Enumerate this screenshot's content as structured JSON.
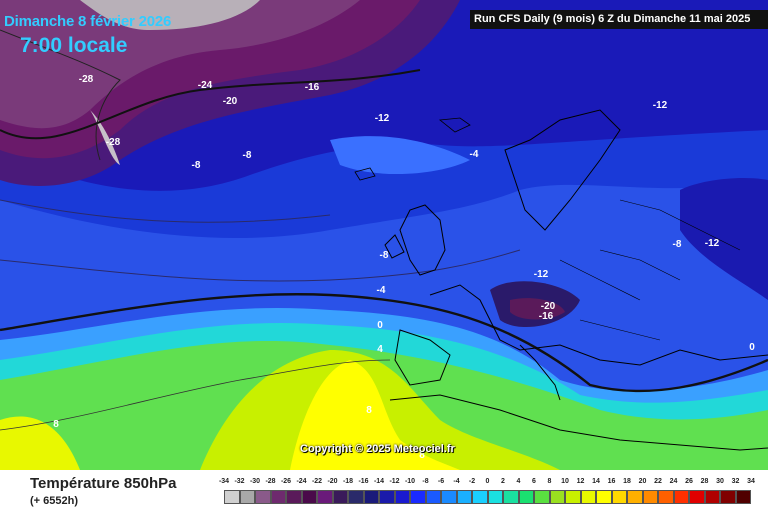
{
  "header": {
    "date": "Dimanche 8 février 2026",
    "time": "7:00 locale",
    "run_info": "Run CFS Daily (9 mois) 6 Z du Dimanche 11 mai 2025"
  },
  "map": {
    "copyright": "Copyright © 2025 Meteociel.fr",
    "contour_labels": [
      {
        "text": "-28"
      },
      {
        "text": "-28"
      },
      {
        "text": "-28"
      },
      {
        "text": "-24"
      },
      {
        "text": "-20"
      },
      {
        "text": "-16"
      },
      {
        "text": "-12"
      },
      {
        "text": "-12"
      },
      {
        "text": "-8"
      },
      {
        "text": "-8"
      },
      {
        "text": "-4"
      },
      {
        "text": "-8"
      },
      {
        "text": "-12"
      },
      {
        "text": "-8"
      },
      {
        "text": "-12"
      },
      {
        "text": "-4"
      },
      {
        "text": "-20"
      },
      {
        "text": "-16"
      },
      {
        "text": "0"
      },
      {
        "text": "4"
      },
      {
        "text": "0"
      },
      {
        "text": "8"
      },
      {
        "text": "8"
      },
      {
        "text": "8"
      }
    ]
  },
  "legend": {
    "title": "Température 850hPa",
    "subtitle": "(+ 6552h)",
    "ticks": [
      "-34",
      "-32",
      "-30",
      "-28",
      "-26",
      "-24",
      "-22",
      "-20",
      "-18",
      "-16",
      "-14",
      "-12",
      "-10",
      "-8",
      "-6",
      "-4",
      "-2",
      "0",
      "2",
      "4",
      "6",
      "8",
      "10",
      "12",
      "14",
      "16",
      "18",
      "20",
      "22",
      "24",
      "26",
      "28",
      "30",
      "32",
      "34"
    ],
    "colors": [
      "#d0d0d0",
      "#a8a8a8",
      "#8a5a8a",
      "#6e2a6e",
      "#5a1a5a",
      "#4a0a4a",
      "#6a1a7a",
      "#3a1a5a",
      "#2a2a6a",
      "#1a1a7a",
      "#1a1aaa",
      "#1a1ad0",
      "#1a2aff",
      "#1a5aff",
      "#1a8aff",
      "#1ab0ff",
      "#1ad0ff",
      "#1ae0e0",
      "#1ae0a0",
      "#1ae070",
      "#5ae040",
      "#9ae020",
      "#c8f000",
      "#e8f800",
      "#ffff00",
      "#ffd800",
      "#ffb000",
      "#ff8a00",
      "#ff6000",
      "#ff3000",
      "#e00000",
      "#b00000",
      "#800000",
      "#500000"
    ]
  }
}
